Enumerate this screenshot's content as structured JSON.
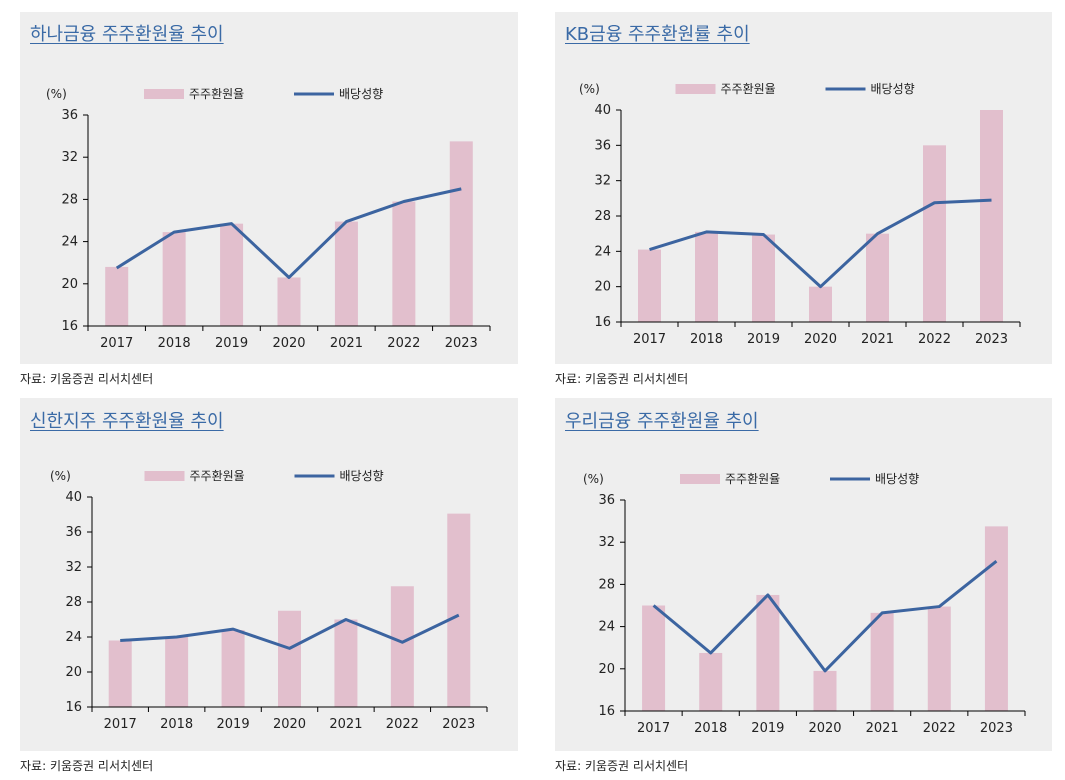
{
  "source": "자료: 키움증권 리서치센터",
  "legend": {
    "bar_label": "주주환원율",
    "line_label": "배당성향"
  },
  "unit": "(%)",
  "colors": {
    "bar": "#e2bfcd",
    "line": "#3c64a0",
    "panel_bg": "#eeeeee",
    "title": "#3a6aa6"
  },
  "chart_data": [
    {
      "id": "hana",
      "type": "bar",
      "title": "하나금융 주주환원율 추이",
      "categories": [
        "2017",
        "2018",
        "2019",
        "2020",
        "2021",
        "2022",
        "2023"
      ],
      "series": [
        {
          "name": "주주환원율",
          "type": "bar",
          "values": [
            21.6,
            24.9,
            25.7,
            20.6,
            25.9,
            27.8,
            33.5
          ]
        },
        {
          "name": "배당성향",
          "type": "line",
          "values": [
            21.5,
            24.9,
            25.7,
            20.6,
            25.9,
            27.8,
            29.0
          ]
        }
      ],
      "ylim": [
        16,
        36
      ],
      "yticks": [
        16,
        20,
        24,
        28,
        32,
        36
      ],
      "ylabel": "(%)",
      "legend": "top"
    },
    {
      "id": "kb",
      "type": "bar",
      "title": "KB금융 주주환원률 추이",
      "categories": [
        "2017",
        "2018",
        "2019",
        "2020",
        "2021",
        "2022",
        "2023"
      ],
      "series": [
        {
          "name": "주주환원율",
          "type": "bar",
          "values": [
            24.2,
            26.2,
            25.9,
            20.0,
            26.0,
            36.0,
            40.0
          ]
        },
        {
          "name": "배당성향",
          "type": "line",
          "values": [
            24.2,
            26.2,
            25.9,
            20.0,
            26.0,
            29.5,
            29.8
          ]
        }
      ],
      "ylim": [
        16,
        40
      ],
      "yticks": [
        16,
        20,
        24,
        28,
        32,
        36,
        40
      ],
      "ylabel": "(%)",
      "legend": "top"
    },
    {
      "id": "shinhan",
      "type": "bar",
      "title": "신한지주 주주환원율 추이",
      "categories": [
        "2017",
        "2018",
        "2019",
        "2020",
        "2021",
        "2022",
        "2023"
      ],
      "series": [
        {
          "name": "주주환원율",
          "type": "bar",
          "values": [
            23.6,
            24.0,
            24.8,
            27.0,
            26.0,
            29.8,
            38.1
          ]
        },
        {
          "name": "배당성향",
          "type": "line",
          "values": [
            23.6,
            24.0,
            24.9,
            22.7,
            26.0,
            23.4,
            26.5
          ]
        }
      ],
      "ylim": [
        16,
        40
      ],
      "yticks": [
        16,
        20,
        24,
        28,
        32,
        36,
        40
      ],
      "ylabel": "(%)",
      "legend": "top"
    },
    {
      "id": "woori",
      "type": "bar",
      "title": "우리금융 주주환원율 추이",
      "categories": [
        "2017",
        "2018",
        "2019",
        "2020",
        "2021",
        "2022",
        "2023"
      ],
      "series": [
        {
          "name": "주주환원율",
          "type": "bar",
          "values": [
            26.0,
            21.5,
            27.0,
            19.8,
            25.3,
            25.9,
            33.5
          ]
        },
        {
          "name": "배당성향",
          "type": "line",
          "values": [
            26.0,
            21.5,
            27.0,
            19.8,
            25.3,
            25.9,
            30.2
          ]
        }
      ],
      "ylim": [
        16,
        36
      ],
      "yticks": [
        16,
        20,
        24,
        28,
        32,
        36
      ],
      "ylabel": "(%)",
      "legend": "top"
    }
  ]
}
